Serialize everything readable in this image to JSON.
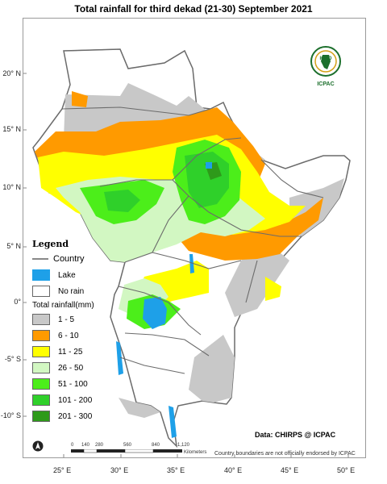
{
  "title": "Total rainfall for third dekad (21-30) September 2021",
  "latitude_labels": [
    "20° N",
    "15° N",
    "10° N",
    "5° N",
    "0°",
    "-5° S",
    "-10° S"
  ],
  "longitude_labels": [
    "25° E",
    "30° E",
    "35° E",
    "40° E",
    "45° E",
    "50° E"
  ],
  "legend": {
    "title": "Legend",
    "country_label": "Country",
    "lake_label": "Lake",
    "no_rain_label": "No rain",
    "total_rainfall_label": "Total rainfall(mm)",
    "classes": [
      {
        "label": "1 - 5",
        "color": "#c8c8c8"
      },
      {
        "label": "6 - 10",
        "color": "#ff9a00"
      },
      {
        "label": "11 - 25",
        "color": "#ffff00"
      },
      {
        "label": "26 - 50",
        "color": "#d2f7c2"
      },
      {
        "label": "51 - 100",
        "color": "#4cee1a"
      },
      {
        "label": "101 - 200",
        "color": "#2fd02a"
      },
      {
        "label": "201 - 300",
        "color": "#2e9a1a"
      }
    ],
    "lake_color": "#1ea0e8",
    "country_color": "#8a8a8a",
    "no_rain_color": "#ffffff"
  },
  "data_credit": "Data: CHIRPS @ ICPAC",
  "disclaimer": "Country boundaries are not officially endorsed by ICPAC",
  "logo": {
    "top_text": "IGAD",
    "bottom_text": "ICPAC"
  },
  "scale_bar": {
    "ticks": [
      "0",
      "140",
      "280",
      "560",
      "840",
      "1,120"
    ],
    "unit": "Kilometers"
  }
}
